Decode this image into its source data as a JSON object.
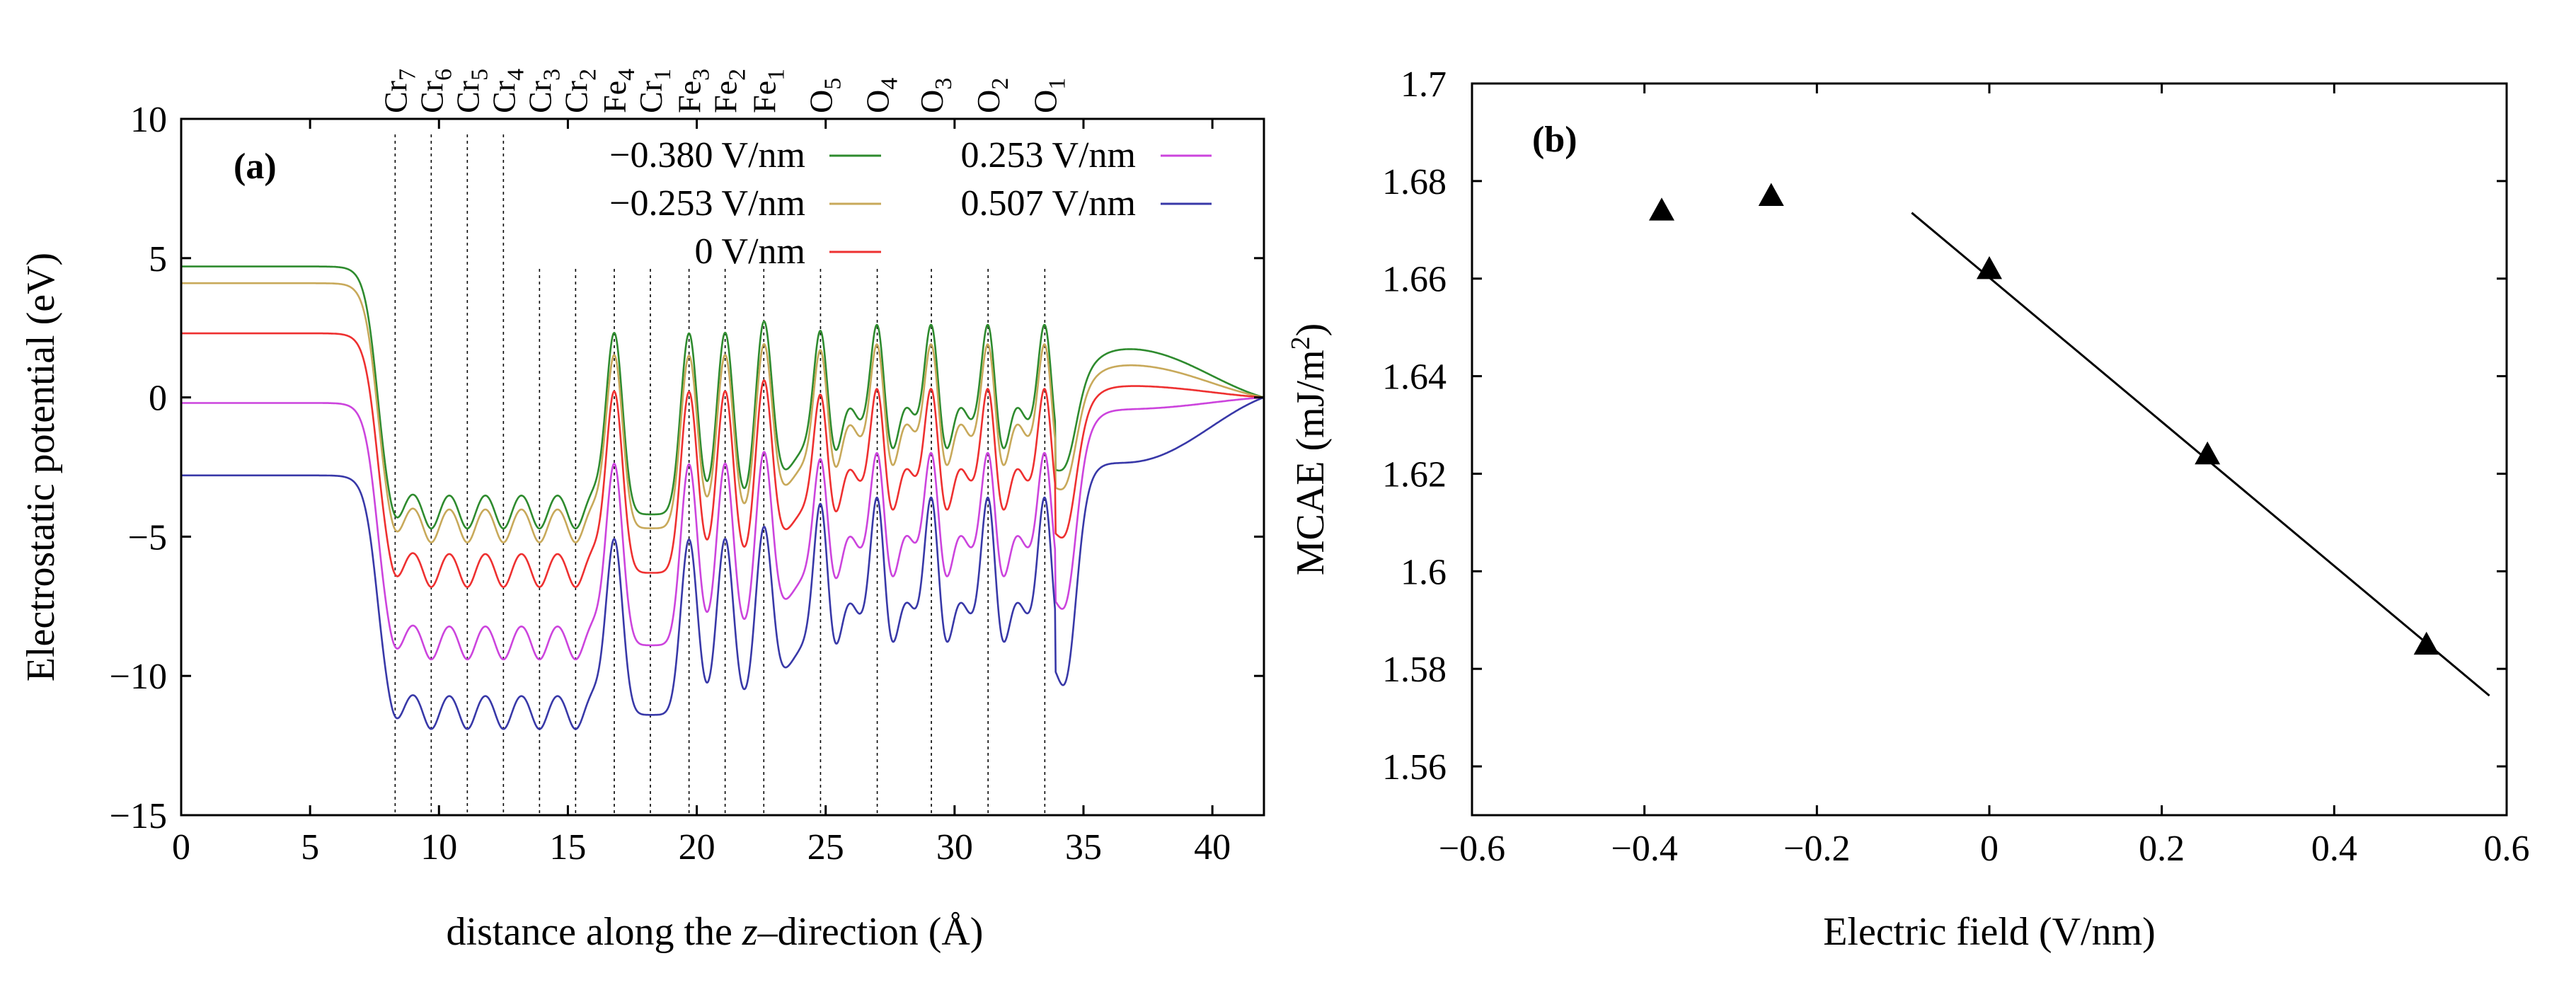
{
  "chart_data": [
    {
      "type": "line",
      "panel_label": "(a)",
      "xlabel": "distance along the z–direction (Å)",
      "xlabel_parts": [
        "distance along the ",
        "z",
        "–direction (Å)"
      ],
      "ylabel": "Electrostatic potential (eV)",
      "xlim": [
        0,
        42
      ],
      "ylim": [
        -15,
        10
      ],
      "xticks": [
        0,
        5,
        10,
        15,
        20,
        25,
        30,
        35,
        40
      ],
      "yticks": [
        -15,
        -10,
        -5,
        0,
        5,
        10
      ],
      "ytick_labels": [
        "−15",
        "−10",
        "−5",
        "0",
        "5",
        "10"
      ],
      "atom_layers": [
        {
          "base": "Cr",
          "sub": "7",
          "z": 8.3
        },
        {
          "base": "Cr",
          "sub": "6",
          "z": 9.7
        },
        {
          "base": "Cr",
          "sub": "5",
          "z": 11.1
        },
        {
          "base": "Cr",
          "sub": "4",
          "z": 12.5
        },
        {
          "base": "Cr",
          "sub": "3",
          "z": 13.9
        },
        {
          "base": "Cr",
          "sub": "2",
          "z": 15.3
        },
        {
          "base": "Fe",
          "sub": "4",
          "z": 16.8
        },
        {
          "base": "Cr",
          "sub": "1",
          "z": 18.2
        },
        {
          "base": "Fe",
          "sub": "3",
          "z": 19.7
        },
        {
          "base": "Fe",
          "sub": "2",
          "z": 21.1
        },
        {
          "base": "Fe",
          "sub": "1",
          "z": 22.6
        },
        {
          "base": "O",
          "sub": "5",
          "z": 24.8
        },
        {
          "base": "O",
          "sub": "4",
          "z": 27.0
        },
        {
          "base": "O",
          "sub": "3",
          "z": 29.1
        },
        {
          "base": "O",
          "sub": "2",
          "z": 31.3
        },
        {
          "base": "O",
          "sub": "1",
          "z": 33.5
        }
      ],
      "series": [
        {
          "name": "−0.380 V/nm",
          "color": "#2e8b2e",
          "vacuum_level": 4.7,
          "slab_level": -4.2,
          "fe_peak": 2.3,
          "o_peak": 2.7,
          "o_base": -1.2,
          "tail_max": 2.1
        },
        {
          "base_note": "",
          "name": "−0.253 V/nm",
          "color": "#c8a95a",
          "vacuum_level": 4.1,
          "slab_level": -4.7,
          "fe_peak": 1.5,
          "o_peak": 2.0,
          "o_base": -1.8,
          "tail_max": 1.4
        },
        {
          "name": "0 V/nm",
          "color": "#ee3030",
          "vacuum_level": 2.3,
          "slab_level": -6.3,
          "fe_peak": 0.2,
          "o_peak": 0.4,
          "o_base": -3.4,
          "tail_max": 0.5
        },
        {
          "name": "0.253 V/nm",
          "color": "#cc44dd",
          "vacuum_level": -0.2,
          "slab_level": -8.9,
          "fe_peak": -2.4,
          "o_peak": -1.9,
          "o_base": -5.8,
          "tail_max": -0.5
        },
        {
          "name": "0.507 V/nm",
          "color": "#3838a8",
          "vacuum_level": -2.8,
          "slab_level": -11.4,
          "fe_peak": -5.1,
          "o_peak": -3.5,
          "o_base": -8.2,
          "tail_max": -2.8
        }
      ],
      "legend": "top-right, two columns"
    },
    {
      "type": "scatter",
      "panel_label": "(b)",
      "xlabel": "Electric field (V/nm)",
      "ylabel_parts": [
        "MCAE (mJ/m",
        "2",
        ")"
      ],
      "xlim": [
        -0.6,
        0.6
      ],
      "ylim": [
        1.55,
        1.7
      ],
      "xticks": [
        -0.6,
        -0.4,
        -0.2,
        0,
        0.2,
        0.4,
        0.6
      ],
      "xtick_labels": [
        "−0.6",
        "−0.4",
        "−0.2",
        "0",
        "0.2",
        "0.4",
        "0.6"
      ],
      "yticks": [
        1.56,
        1.58,
        1.6,
        1.62,
        1.64,
        1.66,
        1.68,
        1.7
      ],
      "ytick_labels": [
        "1.56",
        "1.58",
        "1.6",
        "1.62",
        "1.64",
        "1.66",
        "1.68",
        "1.7"
      ],
      "points": [
        {
          "x": -0.38,
          "y": 1.674
        },
        {
          "x": -0.253,
          "y": 1.677
        },
        {
          "x": 0,
          "y": 1.662
        },
        {
          "x": 0.253,
          "y": 1.624
        },
        {
          "x": 0.507,
          "y": 1.585
        }
      ],
      "fit_line": {
        "x": [
          -0.09,
          0.58
        ],
        "y": [
          1.6735,
          1.5745
        ]
      },
      "marker": "triangle"
    }
  ]
}
